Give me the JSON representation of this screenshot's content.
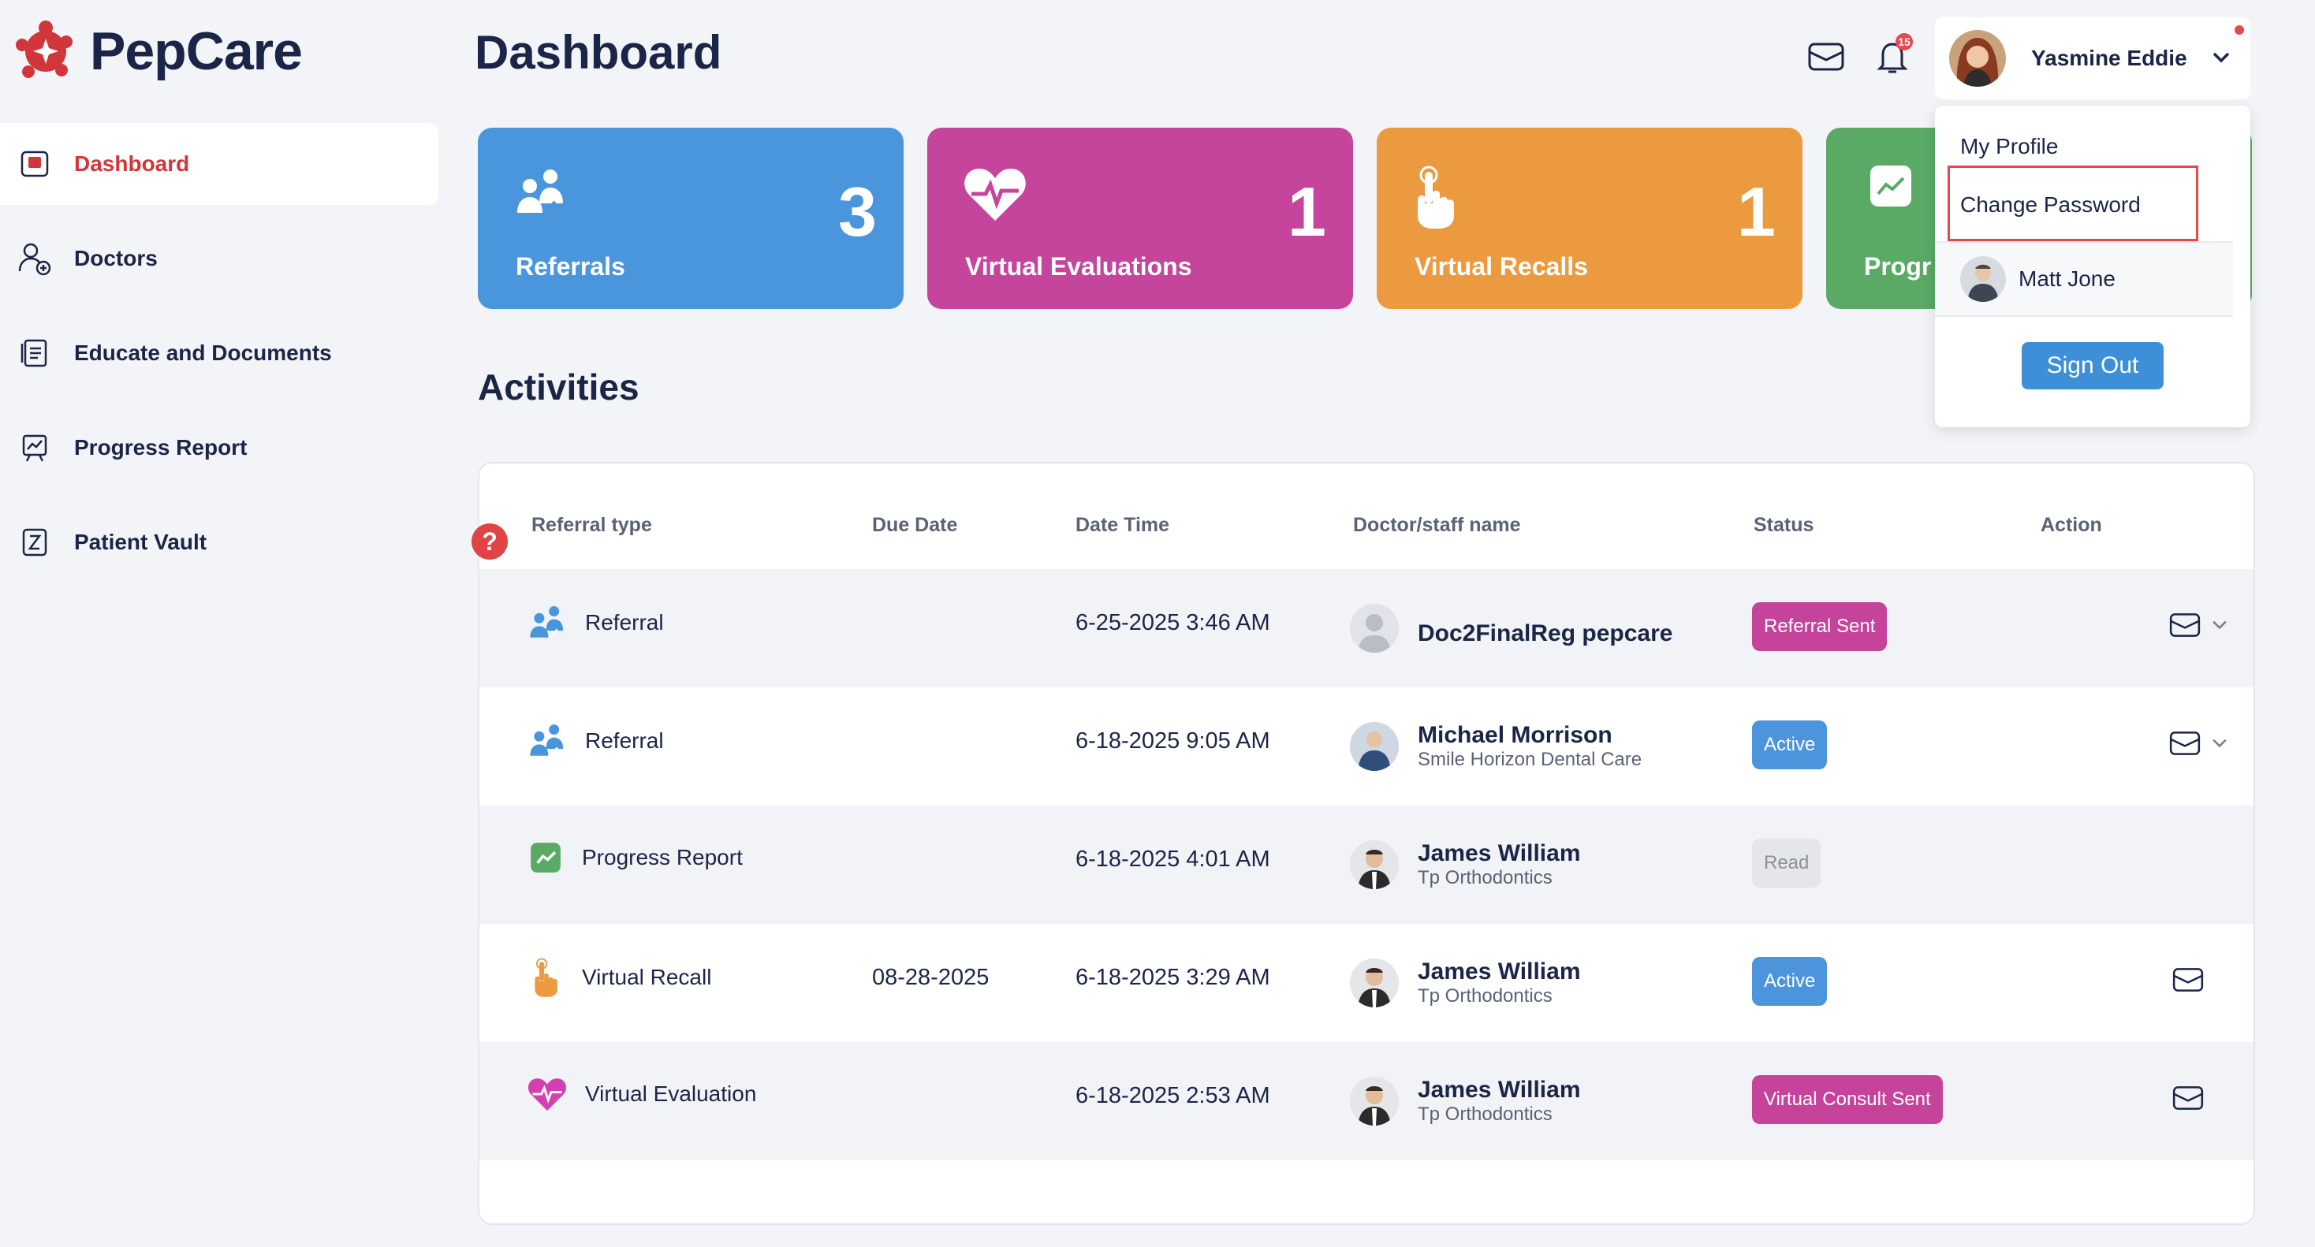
{
  "brand": {
    "name": "PepCare",
    "color": "#d1363b"
  },
  "sidebar": {
    "items": [
      {
        "label": "Dashboard",
        "icon": "dashboard-icon",
        "active": true
      },
      {
        "label": "Doctors",
        "icon": "doctor-add-icon"
      },
      {
        "label": "Educate and Documents",
        "icon": "document-icon"
      },
      {
        "label": "Progress Report",
        "icon": "chart-board-icon"
      },
      {
        "label": "Patient Vault",
        "icon": "vault-icon"
      }
    ]
  },
  "header": {
    "title": "Dashboard",
    "notifications_badge": "15",
    "user_name": "Yasmine Eddie"
  },
  "cards": [
    {
      "label": "Referrals",
      "value": "3",
      "color": "#4a96dc",
      "icon": "referral-users-icon"
    },
    {
      "label": "Virtual Evaluations",
      "value": "1",
      "color": "#c5459c",
      "icon": "heartbeat-icon"
    },
    {
      "label": "Virtual Recalls",
      "value": "1",
      "color": "#eb9a40",
      "icon": "tap-hand-icon"
    },
    {
      "label": "Progr",
      "value": "",
      "color": "#5aaa66",
      "icon": "progress-chart-icon"
    }
  ],
  "activities": {
    "title": "Activities",
    "columns": [
      "Referral type",
      "Due Date",
      "Date Time",
      "Doctor/staff name",
      "Status",
      "Action"
    ],
    "rows": [
      {
        "type": "Referral",
        "icon": "referral-users-icon",
        "due": "",
        "datetime": "6-25-2025 3:46 AM",
        "doctor": "Doc2FinalReg pepcare",
        "practice": "",
        "status": "Referral Sent",
        "status_style": "pink",
        "has_chevron": true
      },
      {
        "type": "Referral",
        "icon": "referral-users-icon",
        "due": "",
        "datetime": "6-18-2025 9:05 AM",
        "doctor": "Michael Morrison",
        "practice": "Smile Horizon Dental Care",
        "status": "Active",
        "status_style": "blue",
        "has_chevron": true
      },
      {
        "type": "Progress Report",
        "icon": "progress-chart-icon",
        "due": "",
        "datetime": "6-18-2025 4:01 AM",
        "doctor": "James William",
        "practice": "Tp Orthodontics",
        "status": "Read",
        "status_style": "grey",
        "has_chevron": false
      },
      {
        "type": "Virtual Recall",
        "icon": "tap-hand-icon",
        "due": "08-28-2025",
        "datetime": "6-18-2025 3:29 AM",
        "doctor": "James William",
        "practice": "Tp Orthodontics",
        "status": "Active",
        "status_style": "blue",
        "has_chevron": false
      },
      {
        "type": "Virtual Evaluation",
        "icon": "heartbeat-icon",
        "due": "",
        "datetime": "6-18-2025 2:53 AM",
        "doctor": "James William",
        "practice": "Tp Orthodontics",
        "status": "Virtual Consult Sent",
        "status_style": "pink",
        "has_chevron": false
      }
    ]
  },
  "help": {
    "label": "?"
  },
  "user_menu": {
    "items": [
      "My Profile",
      "Change Password"
    ],
    "switch_user": "Matt Jone",
    "sign_out": "Sign Out"
  }
}
